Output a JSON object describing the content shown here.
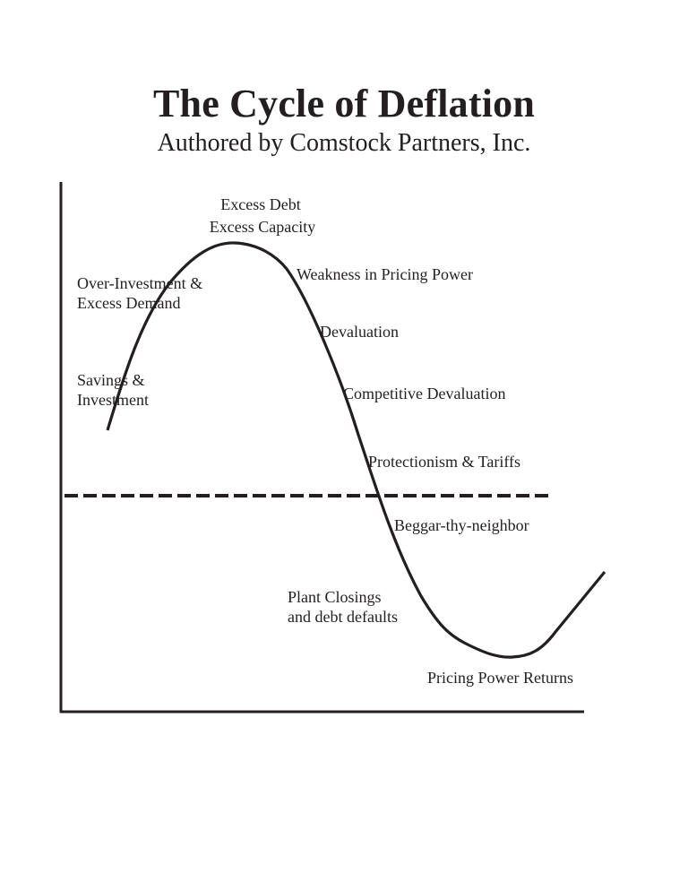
{
  "title": "The Cycle of Deflation",
  "subtitle": "Authored by Comstock Partners, Inc.",
  "colors": {
    "ink": "#231f20",
    "background": "#ffffff"
  },
  "labels": {
    "excess_debt": "Excess Debt",
    "excess_capacity": "Excess Capacity",
    "over_investment": "Over-Investment &",
    "excess_demand": "Excess Demand",
    "savings": "Savings &",
    "investment": "Investment",
    "weakness": "Weakness in Pricing Power",
    "devaluation": "Devaluation",
    "competitive_devaluation": "Competitive Devaluation",
    "protectionism": "Protectionism & Tariffs",
    "beggar": "Beggar-thy-neighbor",
    "plant_closings": "Plant Closings",
    "debt_defaults": "and debt defaults",
    "pricing_returns": "Pricing Power Returns"
  }
}
